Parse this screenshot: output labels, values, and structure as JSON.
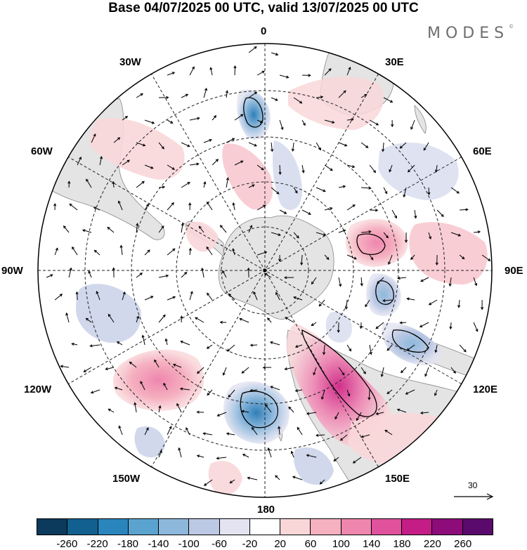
{
  "title": "Base 04/07/2025 00 UTC, valid 13/07/2025 00 UTC",
  "logo": "MODES",
  "logo_mark": "©",
  "longitude_labels": {
    "top": "0",
    "e30": "30E",
    "w30": "30W",
    "e60": "60E",
    "w60": "60W",
    "e90": "90E",
    "w90": "90W",
    "e120": "120E",
    "w120": "120W",
    "e150": "150E",
    "w150": "150W",
    "bottom": "180"
  },
  "vector_scale_label": "30",
  "colorbar": {
    "colors": [
      "#0b3a5c",
      "#12608f",
      "#2a85bd",
      "#5aa3cf",
      "#8db8dc",
      "#bcc9e4",
      "#e3e3f1",
      "#ffffff",
      "#f9d7d9",
      "#f5b1c0",
      "#ef86ae",
      "#e1529c",
      "#c41d86",
      "#8d0c7a",
      "#5a0a6c"
    ],
    "ticks": [
      "-260",
      "-220",
      "-180",
      "-140",
      "-100",
      "-60",
      "-20",
      "20",
      "60",
      "100",
      "140",
      "180",
      "220",
      "260"
    ]
  },
  "colors": {
    "land": "#e6e6e6",
    "negative": "#bcc9e4",
    "positive": "#f5b1c0"
  }
}
